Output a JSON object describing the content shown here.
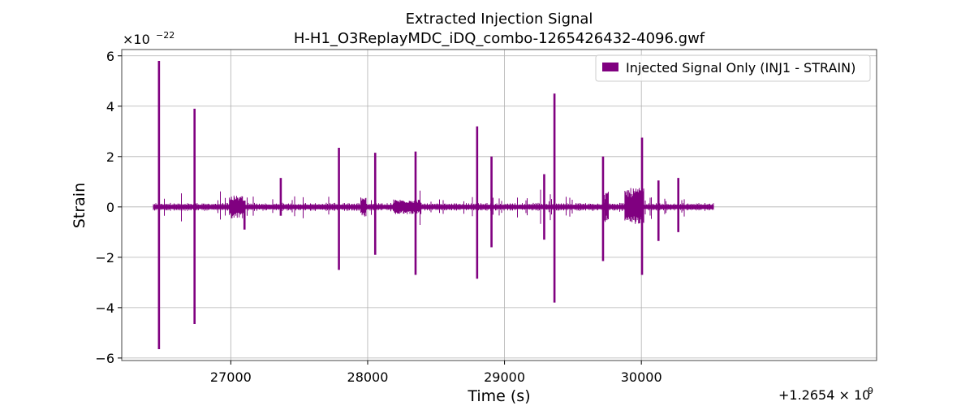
{
  "chart_data": {
    "type": "line",
    "title": "Extracted Injection Signal",
    "subtitle": "H-H1_O3ReplayMDC_iDQ_combo-1265426432-4096.gwf",
    "xlabel": "Time (s)",
    "ylabel": "Strain",
    "x_offset_label": "+1.2654 × 10^9",
    "x_offset_base": "+1.2654 × 10",
    "x_offset_exp": "9",
    "y_scale_label": "×10^−22",
    "y_scale_base": "×10",
    "y_scale_exp": "−22",
    "xlim": [
      26203,
      31719
    ],
    "ylim": [
      -6.1,
      6.25
    ],
    "xticks": [
      27000,
      28000,
      29000,
      30000
    ],
    "xtick_labels": [
      "27000",
      "28000",
      "29000",
      "30000"
    ],
    "yticks": [
      -6,
      -4,
      -2,
      0,
      2,
      4,
      6
    ],
    "ytick_labels": [
      "−6",
      "−4",
      "−2",
      "0",
      "2",
      "4",
      "6"
    ],
    "grid": true,
    "legend_position": "top-right",
    "series": [
      {
        "name": "Injected Signal Only (INJ1 - STRAIN)",
        "color": "#800080",
        "x_range": [
          26432,
          30528
        ],
        "baseline_band": [
          -0.08,
          0.08
        ],
        "spikes": [
          {
            "x": 26475,
            "ymax": 5.8,
            "ymin": -5.65
          },
          {
            "x": 26735,
            "ymax": 3.9,
            "ymin": -4.65
          },
          {
            "x": 27100,
            "ymax": 0.25,
            "ymin": -0.9
          },
          {
            "x": 27365,
            "ymax": 1.15,
            "ymin": -0.35
          },
          {
            "x": 27790,
            "ymax": 2.35,
            "ymin": -2.5
          },
          {
            "x": 28055,
            "ymax": 2.15,
            "ymin": -1.9
          },
          {
            "x": 28350,
            "ymax": 2.2,
            "ymin": -2.7
          },
          {
            "x": 28800,
            "ymax": 3.2,
            "ymin": -2.85
          },
          {
            "x": 28905,
            "ymax": 2.0,
            "ymin": -1.6
          },
          {
            "x": 29290,
            "ymax": 1.3,
            "ymin": -1.3
          },
          {
            "x": 29365,
            "ymax": 4.5,
            "ymin": -3.8
          },
          {
            "x": 29720,
            "ymax": 2.0,
            "ymin": -2.15
          },
          {
            "x": 30005,
            "ymax": 2.75,
            "ymin": -2.7
          },
          {
            "x": 30125,
            "ymax": 1.05,
            "ymin": -1.35
          },
          {
            "x": 30270,
            "ymax": 1.15,
            "ymin": -1.0
          }
        ],
        "bursts": [
          {
            "x_start": 26990,
            "x_end": 27090,
            "amp": 0.45
          },
          {
            "x_start": 27950,
            "x_end": 27990,
            "amp": 0.4
          },
          {
            "x_start": 28190,
            "x_end": 28390,
            "amp": 0.3
          },
          {
            "x_start": 29730,
            "x_end": 29760,
            "amp": 0.6
          },
          {
            "x_start": 29880,
            "x_end": 30020,
            "amp": 0.75
          }
        ]
      }
    ]
  }
}
